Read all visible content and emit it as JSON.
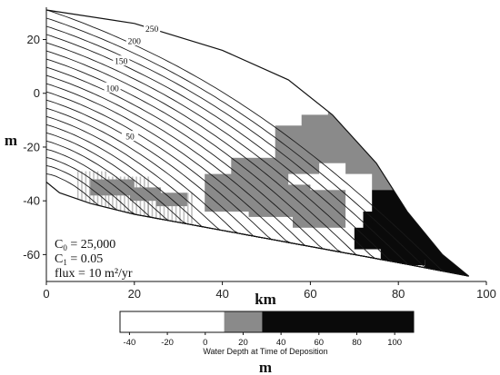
{
  "chart_data": {
    "type": "contour",
    "xlabel": "km",
    "ylabel": "m",
    "xlim": [
      0,
      100
    ],
    "ylim": [
      -70,
      32
    ],
    "xticks": [
      "0",
      "20",
      "40",
      "60",
      "80",
      "100"
    ],
    "yticks": [
      "20",
      "0",
      "-20",
      "-40",
      "-60"
    ],
    "contour_labels": [
      "250",
      "200",
      "150",
      "100",
      "50"
    ],
    "parameters": {
      "c0": "25,000",
      "c1": "0.05",
      "flux": "10 m²/yr"
    },
    "colorbar": {
      "title": "Water Depth at Time of Deposition",
      "label": "m",
      "ticks": [
        "-40",
        "-20",
        "0",
        "20",
        "40",
        "60",
        "80",
        "100"
      ],
      "range": [
        -45,
        110
      ],
      "bins": [
        {
          "from": -45,
          "to": 10,
          "color": "#ffffff"
        },
        {
          "from": 10,
          "to": 30,
          "color": "#8a8a8a"
        },
        {
          "from": 30,
          "to": 110,
          "color": "#0a0a0a"
        }
      ]
    },
    "surfaces": {
      "topography": [
        [
          0,
          31
        ],
        [
          20,
          26
        ],
        [
          40,
          16
        ],
        [
          55,
          5
        ],
        [
          65,
          -8
        ],
        [
          75,
          -26
        ],
        [
          82,
          -44
        ],
        [
          90,
          -60
        ],
        [
          96,
          -68
        ]
      ],
      "basement": [
        [
          0,
          -33
        ],
        [
          3,
          -37
        ],
        [
          10,
          -41
        ],
        [
          20,
          -45
        ],
        [
          40,
          -51
        ],
        [
          60,
          -57
        ],
        [
          80,
          -63
        ],
        [
          96,
          -68
        ]
      ]
    }
  }
}
